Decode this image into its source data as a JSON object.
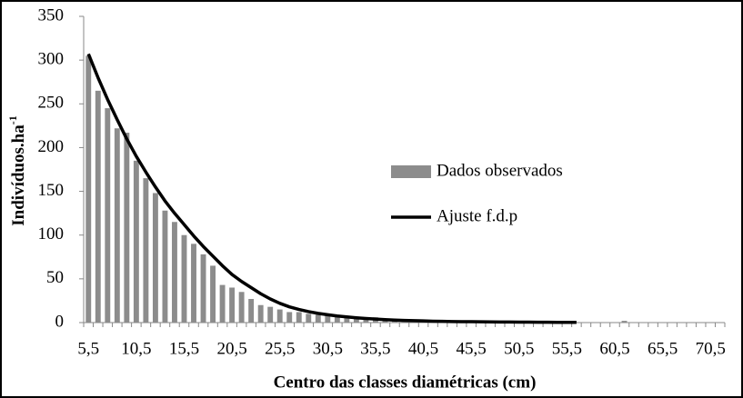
{
  "chart_data": {
    "type": "bar+line",
    "x_label": "Centro das classes diamétricas (cm)",
    "y_label": "Indivíduos.ha",
    "y_label_superscript": "-1",
    "categories": [
      "5,5",
      null,
      null,
      null,
      null,
      "10,5",
      null,
      null,
      null,
      null,
      "15,5",
      null,
      null,
      null,
      null,
      "20,5",
      null,
      null,
      null,
      null,
      "25,5",
      null,
      null,
      null,
      null,
      "30,5",
      null,
      null,
      null,
      null,
      "35,5",
      null,
      null,
      null,
      null,
      "40,5",
      null,
      null,
      null,
      null,
      "45,5",
      null,
      null,
      null,
      null,
      "50,5",
      null,
      null,
      null,
      null,
      "55,5",
      null,
      null,
      null,
      null,
      "60,5",
      null,
      null,
      null,
      null,
      "65,5",
      null,
      null,
      null,
      null,
      "70,5",
      null
    ],
    "series": [
      {
        "name": "Dados observados",
        "type": "bar",
        "color": "#8c8c8c",
        "values": [
          305,
          265,
          245,
          222,
          217,
          185,
          165,
          148,
          128,
          115,
          100,
          90,
          78,
          65,
          43,
          40,
          35,
          27,
          20,
          18,
          15,
          12,
          12,
          10,
          9,
          8,
          7,
          6,
          5,
          5,
          6,
          4,
          3,
          3,
          2,
          2,
          2,
          1,
          1,
          1,
          1,
          1,
          1,
          1,
          0,
          1,
          0,
          0,
          0,
          0,
          1,
          0,
          0,
          0,
          0,
          0,
          2,
          0,
          0,
          0,
          0,
          0,
          0,
          0,
          0,
          0,
          0
        ]
      },
      {
        "name": "Ajuste f.d.p",
        "type": "line",
        "color": "#000000",
        "values": [
          307,
          280,
          255,
          232,
          210,
          190,
          172,
          155,
          139,
          125,
          112,
          99,
          87,
          76,
          65,
          55,
          47,
          40,
          33,
          27,
          22,
          18,
          15,
          12.5,
          10.5,
          9,
          7.5,
          6.5,
          5.5,
          4.7,
          4,
          3.4,
          2.9,
          2.5,
          2.2,
          1.9,
          1.6,
          1.4,
          1.2,
          1.1,
          1,
          0.9,
          0.8,
          0.7,
          0.6,
          0.5,
          0.5,
          0.4,
          0.4,
          0.3,
          0.3,
          0.3,
          null,
          null,
          null,
          null,
          null,
          null,
          null,
          null,
          null,
          null,
          null,
          null,
          null,
          null,
          null
        ]
      }
    ],
    "ylim": [
      0,
      350
    ],
    "yticks": [
      0,
      50,
      100,
      150,
      200,
      250,
      300,
      350
    ],
    "grid": false
  }
}
